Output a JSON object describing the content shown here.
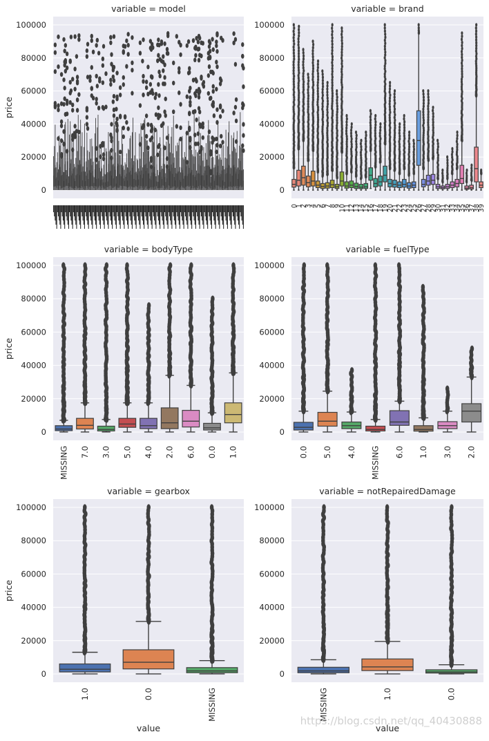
{
  "chart_data": [
    {
      "type": "boxplot",
      "title": "variable = model",
      "ylabel": "price",
      "xlabel": "",
      "ylim": [
        -5000,
        105000
      ],
      "yticks": [
        0,
        20000,
        40000,
        60000,
        80000,
        100000
      ],
      "dense": true,
      "categories": [],
      "boxes": []
    },
    {
      "type": "boxplot",
      "title": "variable = brand",
      "ylabel": "",
      "xlabel": "",
      "ylim": [
        -5000,
        105000
      ],
      "yticks": [
        0,
        20000,
        40000,
        60000,
        80000,
        100000
      ],
      "categories": [
        "0",
        "1",
        "2",
        "3",
        "4",
        "5",
        "6",
        "7",
        "8",
        "9",
        "10",
        "11",
        "12",
        "13",
        "14",
        "15",
        "16",
        "17",
        "18",
        "19",
        "20",
        "21",
        "22",
        "23",
        "24",
        "25",
        "26",
        "27",
        "28",
        "29",
        "30",
        "31",
        "32",
        "33",
        "34",
        "35",
        "36",
        "37",
        "38",
        "39"
      ],
      "boxes": [
        {
          "q1": 1800,
          "med": 3500,
          "q3": 6500,
          "lo": 0,
          "hi": 13500,
          "fmax": 100000,
          "color": "#e8887a"
        },
        {
          "q1": 2500,
          "med": 6000,
          "q3": 12000,
          "lo": 0,
          "hi": 25000,
          "fmax": 99000,
          "color": "#e8887a"
        },
        {
          "q1": 3000,
          "med": 7500,
          "q3": 14500,
          "lo": 0,
          "hi": 30000,
          "fmax": 85000,
          "color": "#df8a5a"
        },
        {
          "q1": 2000,
          "med": 4500,
          "q3": 8500,
          "lo": 0,
          "hi": 18000,
          "fmax": 70000,
          "color": "#df8a5a"
        },
        {
          "q1": 2500,
          "med": 5500,
          "q3": 11500,
          "lo": 0,
          "hi": 24000,
          "fmax": 90000,
          "color": "#d7903f"
        },
        {
          "q1": 1500,
          "med": 3000,
          "q3": 5500,
          "lo": 0,
          "hi": 11000,
          "fmax": 78000,
          "color": "#c89a3c"
        },
        {
          "q1": 1000,
          "med": 2200,
          "q3": 4000,
          "lo": 0,
          "hi": 8500,
          "fmax": 72000,
          "color": "#c09e35"
        },
        {
          "q1": 1200,
          "med": 2500,
          "q3": 4500,
          "lo": 0,
          "hi": 9500,
          "fmax": 65000,
          "color": "#b8a233"
        },
        {
          "q1": 1500,
          "med": 3200,
          "q3": 6000,
          "lo": 0,
          "hi": 12000,
          "fmax": 100000,
          "color": "#a9a532"
        },
        {
          "q1": 1000,
          "med": 2000,
          "q3": 3500,
          "lo": 0,
          "hi": 7500,
          "fmax": 60000,
          "color": "#99a932"
        },
        {
          "q1": 2500,
          "med": 5500,
          "q3": 11000,
          "lo": 0,
          "hi": 23000,
          "fmax": 98000,
          "color": "#8aac34"
        },
        {
          "q1": 1200,
          "med": 2500,
          "q3": 5000,
          "lo": 0,
          "hi": 10000,
          "fmax": 45000,
          "color": "#6fae3c"
        },
        {
          "q1": 1500,
          "med": 3000,
          "q3": 5500,
          "lo": 0,
          "hi": 11000,
          "fmax": 40000,
          "color": "#58b04a"
        },
        {
          "q1": 1000,
          "med": 2200,
          "q3": 4200,
          "lo": 0,
          "hi": 8500,
          "fmax": 35000,
          "color": "#4bb05a"
        },
        {
          "q1": 900,
          "med": 1800,
          "q3": 3500,
          "lo": 0,
          "hi": 7000,
          "fmax": 30000,
          "color": "#44b06b"
        },
        {
          "q1": 1000,
          "med": 2000,
          "q3": 4000,
          "lo": 0,
          "hi": 8000,
          "fmax": 35000,
          "color": "#40ae7b"
        },
        {
          "q1": 6000,
          "med": 9000,
          "q3": 13500,
          "lo": 1000,
          "hi": 24000,
          "fmax": 48000,
          "color": "#3eaa89"
        },
        {
          "q1": 2000,
          "med": 4000,
          "q3": 7000,
          "lo": 0,
          "hi": 14000,
          "fmax": 45000,
          "color": "#3da894"
        },
        {
          "q1": 2500,
          "med": 5000,
          "q3": 8500,
          "lo": 0,
          "hi": 17000,
          "fmax": 40000,
          "color": "#3ea69f"
        },
        {
          "q1": 5000,
          "med": 9000,
          "q3": 14500,
          "lo": 0,
          "hi": 28000,
          "fmax": 100000,
          "color": "#40a4a9"
        },
        {
          "q1": 2000,
          "med": 4000,
          "q3": 6500,
          "lo": 0,
          "hi": 13000,
          "fmax": 65000,
          "color": "#42a2b4"
        },
        {
          "q1": 1800,
          "med": 3500,
          "q3": 6000,
          "lo": 0,
          "hi": 12000,
          "fmax": 60000,
          "color": "#45a0bf"
        },
        {
          "q1": 1500,
          "med": 3000,
          "q3": 5000,
          "lo": 0,
          "hi": 10000,
          "fmax": 40000,
          "color": "#499dca"
        },
        {
          "q1": 1800,
          "med": 3500,
          "q3": 6500,
          "lo": 0,
          "hi": 13000,
          "fmax": 45000,
          "color": "#4f99d3"
        },
        {
          "q1": 1200,
          "med": 2500,
          "q3": 4500,
          "lo": 0,
          "hi": 9000,
          "fmax": 35000,
          "color": "#5895db"
        },
        {
          "q1": 1500,
          "med": 3000,
          "q3": 5000,
          "lo": 0,
          "hi": 10000,
          "fmax": 30000,
          "color": "#6390e0"
        },
        {
          "q1": 15000,
          "med": 30000,
          "q3": 48000,
          "lo": 0,
          "hi": 95000,
          "fmax": 100000,
          "color": "#6a9fe0"
        },
        {
          "q1": 2000,
          "med": 3500,
          "q3": 6500,
          "lo": 0,
          "hi": 13000,
          "fmax": 60000,
          "color": "#7a8ee2"
        },
        {
          "q1": 3000,
          "med": 5500,
          "q3": 9000,
          "lo": 0,
          "hi": 18000,
          "fmax": 60000,
          "color": "#8c88e2"
        },
        {
          "q1": 3500,
          "med": 6000,
          "q3": 9500,
          "lo": 0,
          "hi": 19000,
          "fmax": 50000,
          "color": "#9c85e0"
        },
        {
          "q1": 1000,
          "med": 2000,
          "q3": 3500,
          "lo": 0,
          "hi": 7000,
          "fmax": 30000,
          "color": "#ab83dc"
        },
        {
          "q1": 800,
          "med": 1500,
          "q3": 2500,
          "lo": 0,
          "hi": 5000,
          "fmax": 12000,
          "color": "#b981d7"
        },
        {
          "q1": 1000,
          "med": 2000,
          "q3": 3500,
          "lo": 0,
          "hi": 7000,
          "fmax": 20000,
          "color": "#c67fd0"
        },
        {
          "q1": 1500,
          "med": 3000,
          "q3": 5000,
          "lo": 0,
          "hi": 10000,
          "fmax": 25000,
          "color": "#d27ec8"
        },
        {
          "q1": 2000,
          "med": 4000,
          "q3": 6500,
          "lo": 0,
          "hi": 13000,
          "fmax": 35000,
          "color": "#dc7ebf"
        },
        {
          "q1": 4000,
          "med": 7000,
          "q3": 15000,
          "lo": 0,
          "hi": 30000,
          "fmax": 95000,
          "color": "#e37fb4"
        },
        {
          "q1": 500,
          "med": 1200,
          "q3": 2500,
          "lo": 0,
          "hi": 5000,
          "fmax": 12000,
          "color": "#e881a8"
        },
        {
          "q1": 700,
          "med": 1500,
          "q3": 3000,
          "lo": 0,
          "hi": 6000,
          "fmax": 15000,
          "color": "#eb849b"
        },
        {
          "q1": 5000,
          "med": 13000,
          "q3": 26000,
          "lo": 0,
          "hi": 57000,
          "fmax": 100000,
          "color": "#ed888e"
        },
        {
          "q1": 1500,
          "med": 3000,
          "q3": 5000,
          "lo": 0,
          "hi": 10000,
          "fmax": 12000,
          "color": "#ee8a84"
        }
      ]
    },
    {
      "type": "boxplot",
      "title": "variable = bodyType",
      "ylabel": "price",
      "xlabel": "",
      "ylim": [
        -5000,
        105000
      ],
      "yticks": [
        0,
        20000,
        40000,
        60000,
        80000,
        100000
      ],
      "categories": [
        "MISSING",
        "7.0",
        "3.0",
        "5.0",
        "4.0",
        "2.0",
        "6.0",
        "0.0",
        "1.0"
      ],
      "boxes": [
        {
          "q1": 800,
          "med": 1800,
          "q3": 3800,
          "lo": 0,
          "hi": 7000,
          "fmax": 100000,
          "color": "#4c72b0"
        },
        {
          "q1": 1800,
          "med": 4000,
          "q3": 8200,
          "lo": 0,
          "hi": 17500,
          "fmax": 100000,
          "color": "#dd8452"
        },
        {
          "q1": 600,
          "med": 1500,
          "q3": 3500,
          "lo": 0,
          "hi": 7500,
          "fmax": 100000,
          "color": "#55a868"
        },
        {
          "q1": 2800,
          "med": 4800,
          "q3": 8200,
          "lo": 0,
          "hi": 17500,
          "fmax": 100000,
          "color": "#c44e52"
        },
        {
          "q1": 2000,
          "med": 3800,
          "q3": 8200,
          "lo": 0,
          "hi": 17500,
          "fmax": 76000,
          "color": "#8172b3"
        },
        {
          "q1": 2000,
          "med": 5500,
          "q3": 14500,
          "lo": 0,
          "hi": 34000,
          "fmax": 100000,
          "color": "#937860"
        },
        {
          "q1": 3000,
          "med": 6500,
          "q3": 13000,
          "lo": 0,
          "hi": 28000,
          "fmax": 100000,
          "color": "#da8bc3"
        },
        {
          "q1": 1200,
          "med": 2500,
          "q3": 5200,
          "lo": 0,
          "hi": 11500,
          "fmax": 80000,
          "color": "#8c8c8c"
        },
        {
          "q1": 5500,
          "med": 10500,
          "q3": 17500,
          "lo": 0,
          "hi": 35500,
          "fmax": 100000,
          "color": "#ccb974"
        }
      ]
    },
    {
      "type": "boxplot",
      "title": "variable = fuelType",
      "ylabel": "",
      "xlabel": "",
      "ylim": [
        -5000,
        105000
      ],
      "yticks": [
        0,
        20000,
        40000,
        60000,
        80000,
        100000
      ],
      "categories": [
        "0.0",
        "5.0",
        "4.0",
        "MISSING",
        "6.0",
        "1.0",
        "3.0",
        "2.0"
      ],
      "boxes": [
        {
          "q1": 1200,
          "med": 2800,
          "q3": 5800,
          "lo": 0,
          "hi": 12500,
          "fmax": 100000,
          "color": "#4c72b0"
        },
        {
          "q1": 3500,
          "med": 6500,
          "q3": 11800,
          "lo": 0,
          "hi": 24500,
          "fmax": 100000,
          "color": "#dd8452"
        },
        {
          "q1": 2000,
          "med": 3800,
          "q3": 6000,
          "lo": 0,
          "hi": 12000,
          "fmax": 37000,
          "color": "#55a868"
        },
        {
          "q1": 600,
          "med": 1500,
          "q3": 3500,
          "lo": 0,
          "hi": 7500,
          "fmax": 100000,
          "color": "#c44e52"
        },
        {
          "q1": 4000,
          "med": 6000,
          "q3": 12800,
          "lo": 0,
          "hi": 18500,
          "fmax": 100000,
          "color": "#8172b3"
        },
        {
          "q1": 500,
          "med": 1500,
          "q3": 3800,
          "lo": 0,
          "hi": 8500,
          "fmax": 87000,
          "color": "#937860"
        },
        {
          "q1": 2000,
          "med": 3800,
          "q3": 6200,
          "lo": 0,
          "hi": 12500,
          "fmax": 26000,
          "color": "#da8bc3"
        },
        {
          "q1": 6000,
          "med": 12500,
          "q3": 17000,
          "lo": 0,
          "hi": 33000,
          "fmax": 50000,
          "color": "#8c8c8c"
        }
      ]
    },
    {
      "type": "boxplot",
      "title": "variable = gearbox",
      "ylabel": "price",
      "xlabel": "value",
      "ylim": [
        -5000,
        105000
      ],
      "yticks": [
        0,
        20000,
        40000,
        60000,
        80000,
        100000
      ],
      "categories": [
        "1.0",
        "0.0",
        "MISSING"
      ],
      "boxes": [
        {
          "q1": 1200,
          "med": 2800,
          "q3": 6000,
          "lo": 0,
          "hi": 13000,
          "fmax": 100000,
          "color": "#4c72b0"
        },
        {
          "q1": 3000,
          "med": 7000,
          "q3": 14500,
          "lo": 0,
          "hi": 31500,
          "fmax": 100000,
          "color": "#dd8452"
        },
        {
          "q1": 700,
          "med": 1800,
          "q3": 3800,
          "lo": 0,
          "hi": 8000,
          "fmax": 100000,
          "color": "#55a868"
        }
      ]
    },
    {
      "type": "boxplot",
      "title": "variable = notRepairedDamage",
      "ylabel": "",
      "xlabel": "value",
      "ylim": [
        -5000,
        105000
      ],
      "yticks": [
        0,
        20000,
        40000,
        60000,
        80000,
        100000
      ],
      "categories": [
        "MISSING",
        "1.0",
        "0.0"
      ],
      "boxes": [
        {
          "q1": 700,
          "med": 1800,
          "q3": 4000,
          "lo": 0,
          "hi": 8500,
          "fmax": 100000,
          "color": "#4c72b0"
        },
        {
          "q1": 2000,
          "med": 4200,
          "q3": 9000,
          "lo": 0,
          "hi": 19500,
          "fmax": 100000,
          "color": "#dd8452"
        },
        {
          "q1": 500,
          "med": 1200,
          "q3": 2500,
          "lo": 0,
          "hi": 5500,
          "fmax": 100000,
          "color": "#55a868"
        }
      ]
    }
  ],
  "watermark": "https://blog.csdn.net/qq_40430888"
}
